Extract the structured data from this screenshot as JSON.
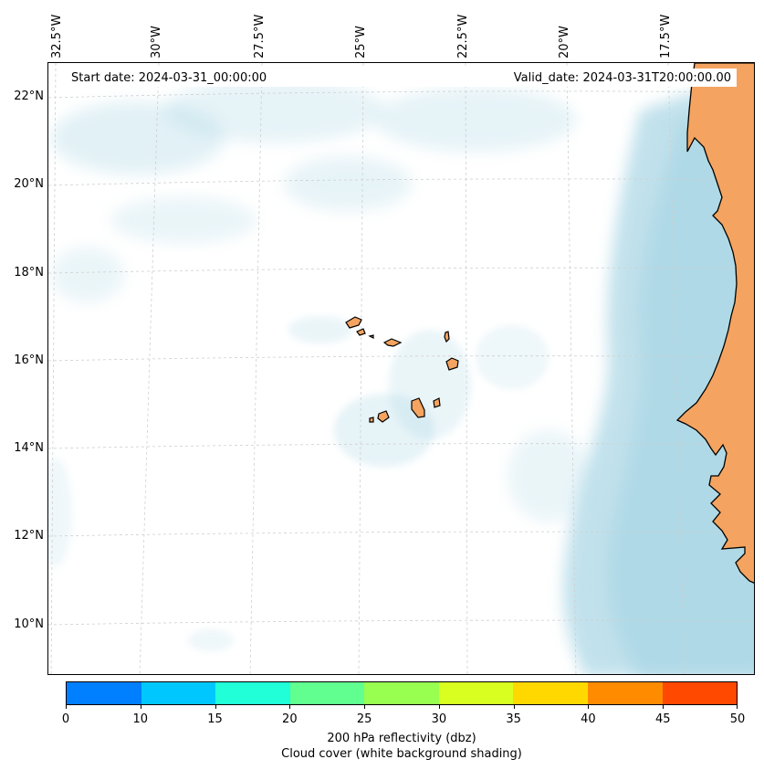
{
  "map": {
    "lon_labels": [
      "32.5°W",
      "30°W",
      "27.5°W",
      "25°W",
      "22.5°W",
      "20°W",
      "17.5°W"
    ],
    "lat_labels": [
      "22°N",
      "20°N",
      "18°N",
      "16°N",
      "14°N",
      "12°N",
      "10°N"
    ],
    "start_date": "Start date: 2024-03-31_00:00:00",
    "valid_date": "Valid_date: 2024-03-31T20:00:00.00",
    "colors": {
      "land": "#f4a460",
      "cloud": "#add8e6",
      "coastline": "#000000",
      "grid": "#cfcfcf"
    }
  },
  "colorbar": {
    "colors": [
      "#0080ff",
      "#00c8ff",
      "#20ffd8",
      "#60ff90",
      "#98ff50",
      "#d8ff20",
      "#ffd800",
      "#ff8c00",
      "#ff4800"
    ],
    "ticks": [
      "0",
      "10",
      "15",
      "20",
      "25",
      "30",
      "35",
      "40",
      "45",
      "50"
    ],
    "label_line1": "200 hPa reflectivity (dbz)",
    "label_line2": "Cloud cover (white background shading)"
  }
}
